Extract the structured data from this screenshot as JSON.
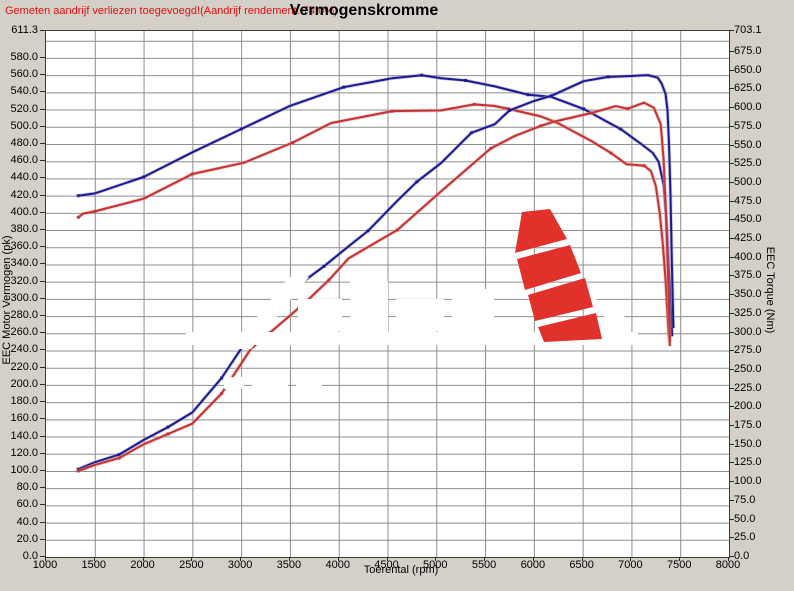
{
  "header": {
    "warning": "Gemeten aandrijf verliezen toegevoegd!(Aandrijf rendement: 74.0%)",
    "title": "Vermogenskromme"
  },
  "colors": {
    "background": "#d4d0c8",
    "plot_background": "#ffffff",
    "grid": "#8f8f8f",
    "warning_text": "#e01010",
    "curve_blue": "#1b1b8e",
    "curve_red": "#c43232",
    "logo_red": "#e0312a"
  },
  "chart_data": {
    "type": "line",
    "title": "Vermogenskromme",
    "x_axis": {
      "title": "Toerental (rpm)",
      "min": 1000,
      "max": 8000,
      "ticks": [
        1000,
        1500,
        2000,
        2500,
        3000,
        3500,
        4000,
        4500,
        5000,
        5500,
        6000,
        6500,
        7000,
        7500,
        8000
      ]
    },
    "y_left_axis": {
      "title": "EEC Motor Vermogen (pk)",
      "min": 0,
      "max": 611.3,
      "ticks": [
        611.3,
        580,
        560,
        540,
        520,
        500,
        480,
        460,
        440,
        420,
        400,
        380,
        360,
        340,
        320,
        300,
        280,
        260,
        240,
        220,
        200,
        180,
        160,
        140,
        120,
        100,
        80,
        60,
        40,
        20,
        0
      ]
    },
    "y_right_axis": {
      "title": "EEC Torque (Nm)",
      "min": 0,
      "max": 703.1,
      "ticks": [
        703.1,
        675,
        650,
        625,
        600,
        575,
        550,
        525,
        500,
        475,
        450,
        425,
        400,
        375,
        350,
        325,
        300,
        275,
        250,
        225,
        200,
        175,
        150,
        125,
        100,
        75,
        50,
        25,
        0
      ]
    },
    "grid": {
      "horizontal_step_left_units": 20,
      "vertical_step_rpm": 500
    },
    "legend": "none",
    "series": [
      {
        "name": "torque-run-blue",
        "axis": "right",
        "unit": "Nm",
        "color": "#1b1b8e",
        "halo": "#9a9ad2",
        "points": [
          [
            1330,
            483
          ],
          [
            1500,
            486
          ],
          [
            2000,
            508
          ],
          [
            2500,
            541
          ],
          [
            3000,
            572
          ],
          [
            3500,
            603
          ],
          [
            4050,
            628
          ],
          [
            4550,
            640
          ],
          [
            4850,
            644
          ],
          [
            5050,
            640
          ],
          [
            5300,
            637
          ],
          [
            5600,
            629
          ],
          [
            5940,
            618
          ],
          [
            6180,
            615
          ],
          [
            6510,
            599
          ],
          [
            6760,
            581
          ],
          [
            6890,
            572
          ],
          [
            7100,
            552
          ],
          [
            7220,
            540
          ],
          [
            7280,
            528
          ],
          [
            7330,
            498
          ],
          [
            7360,
            448
          ],
          [
            7380,
            392
          ],
          [
            7400,
            340
          ],
          [
            7418,
            295
          ]
        ]
      },
      {
        "name": "torque-run-red",
        "axis": "right",
        "unit": "Nm",
        "color": "#c43232",
        "halo": "#e39a9a",
        "points": [
          [
            1330,
            454
          ],
          [
            1380,
            459
          ],
          [
            1500,
            462
          ],
          [
            2000,
            479
          ],
          [
            2500,
            512
          ],
          [
            3030,
            527
          ],
          [
            3530,
            554
          ],
          [
            3920,
            580
          ],
          [
            4550,
            596
          ],
          [
            5050,
            597
          ],
          [
            5390,
            605
          ],
          [
            5590,
            603
          ],
          [
            5740,
            599
          ],
          [
            6070,
            589
          ],
          [
            6230,
            581
          ],
          [
            6590,
            556
          ],
          [
            6790,
            540
          ],
          [
            6950,
            525
          ],
          [
            7130,
            523
          ],
          [
            7200,
            516
          ],
          [
            7250,
            496
          ],
          [
            7290,
            460
          ],
          [
            7320,
            420
          ],
          [
            7350,
            370
          ],
          [
            7380,
            300
          ],
          [
            7395,
            282
          ]
        ]
      },
      {
        "name": "power-run-blue",
        "axis": "left",
        "unit": "pk",
        "color": "#1b1b8e",
        "halo": "#9a9ad2",
        "points": [
          [
            1330,
            102
          ],
          [
            1500,
            110
          ],
          [
            1750,
            119
          ],
          [
            2000,
            136
          ],
          [
            2250,
            151
          ],
          [
            2500,
            168
          ],
          [
            2800,
            208
          ],
          [
            3100,
            259
          ],
          [
            3400,
            291
          ],
          [
            3600,
            317
          ],
          [
            3850,
            338
          ],
          [
            4100,
            361
          ],
          [
            4300,
            379
          ],
          [
            4600,
            414
          ],
          [
            4800,
            436
          ],
          [
            5050,
            458
          ],
          [
            5360,
            493
          ],
          [
            5600,
            503
          ],
          [
            5750,
            519
          ],
          [
            6000,
            530
          ],
          [
            6180,
            536
          ],
          [
            6510,
            553
          ],
          [
            6760,
            558
          ],
          [
            7000,
            559
          ],
          [
            7170,
            560
          ],
          [
            7270,
            557
          ],
          [
            7310,
            550
          ],
          [
            7350,
            538
          ],
          [
            7370,
            519
          ],
          [
            7385,
            480
          ],
          [
            7400,
            420
          ],
          [
            7415,
            340
          ],
          [
            7430,
            266
          ]
        ]
      },
      {
        "name": "power-run-red",
        "axis": "left",
        "unit": "pk",
        "color": "#c43232",
        "halo": "#e39a9a",
        "points": [
          [
            1330,
            100
          ],
          [
            1500,
            107
          ],
          [
            1750,
            115
          ],
          [
            2000,
            131
          ],
          [
            2250,
            143
          ],
          [
            2500,
            155
          ],
          [
            2800,
            190
          ],
          [
            3100,
            242
          ],
          [
            3300,
            261
          ],
          [
            3660,
            296
          ],
          [
            3900,
            322
          ],
          [
            4100,
            347
          ],
          [
            4600,
            380
          ],
          [
            5050,
            425
          ],
          [
            5560,
            475
          ],
          [
            5800,
            489
          ],
          [
            6070,
            501
          ],
          [
            6210,
            506
          ],
          [
            6590,
            516
          ],
          [
            6840,
            524
          ],
          [
            6960,
            521
          ],
          [
            7130,
            528
          ],
          [
            7230,
            522
          ],
          [
            7300,
            503
          ],
          [
            7330,
            462
          ],
          [
            7355,
            395
          ],
          [
            7375,
            330
          ],
          [
            7395,
            250
          ]
        ]
      }
    ],
    "annotations": {
      "watermark_text": "illegible white watermark",
      "watermark_logo": "red curved fan-blade logo"
    }
  }
}
